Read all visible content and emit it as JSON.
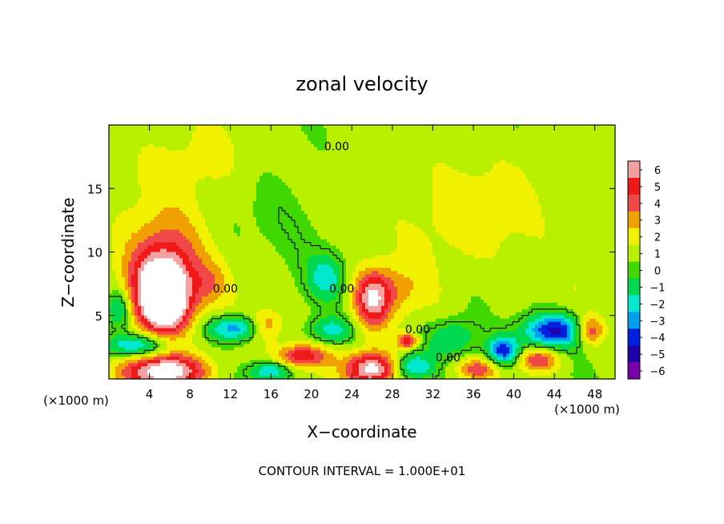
{
  "chart_data": {
    "type": "heatmap",
    "title": "zonal velocity",
    "xlabel": "X−coordinate",
    "ylabel": "Z−coordinate",
    "x_unit": "(×1000 m)",
    "x_unit_right": "(×1000 m)",
    "xlim": [
      0,
      50
    ],
    "ylim": [
      0,
      20
    ],
    "x_ticks": [
      4,
      8,
      12,
      16,
      20,
      24,
      28,
      32,
      36,
      40,
      44,
      48
    ],
    "x_tick_labels": [
      "4",
      "8",
      "12",
      "16",
      "20",
      "24",
      "28",
      "32",
      "36",
      "40",
      "44",
      "48"
    ],
    "y_ticks": [
      5,
      10,
      15
    ],
    "y_tick_labels": [
      "5",
      "10",
      "15"
    ],
    "footer": "CONTOUR INTERVAL = 1.000E+01",
    "contour_labels": [
      {
        "text": "0.00",
        "x": 22.5,
        "y": 18.0
      },
      {
        "text": "0.00",
        "x": 11.5,
        "y": 6.8
      },
      {
        "text": "0.00",
        "x": 23.0,
        "y": 6.8
      },
      {
        "text": "0.00",
        "x": 30.5,
        "y": 3.6
      },
      {
        "text": "0.00",
        "x": 33.5,
        "y": 1.4
      }
    ],
    "colorbar": {
      "levels": [
        6,
        5,
        4,
        3,
        2,
        1,
        0,
        -1,
        -2,
        -3,
        -4,
        -5,
        -6
      ],
      "labels": [
        "6",
        "5",
        "4",
        "3",
        "2",
        "1",
        "0",
        "−1",
        "−2",
        "−3",
        "−4",
        "−5",
        "−6"
      ],
      "colors": [
        "#f2a0a0",
        "#f01818",
        "#f04848",
        "#f0a000",
        "#f0f000",
        "#b8f000",
        "#40d800",
        "#00d850",
        "#00e8d0",
        "#00a0f0",
        "#0020e0",
        "#2000a8",
        "#7800a8"
      ]
    },
    "features": [
      {
        "x": 5.5,
        "z": 6.0,
        "v": 6.5,
        "rx": 2.6,
        "rz": 2.6
      },
      {
        "x": 5.0,
        "z": 7.5,
        "v": 4.5,
        "rx": 3.2,
        "rz": 3.2
      },
      {
        "x": 6.0,
        "z": 10.0,
        "v": 2.2,
        "rx": 4.0,
        "rz": 3.5
      },
      {
        "x": 5.5,
        "z": 0.6,
        "v": 6.5,
        "rx": 4.0,
        "rz": 1.4
      },
      {
        "x": 26.0,
        "z": 6.2,
        "v": 4.8,
        "rx": 1.8,
        "rz": 2.2
      },
      {
        "x": 26.0,
        "z": 0.8,
        "v": 6.5,
        "rx": 2.5,
        "rz": 1.3
      },
      {
        "x": 19.0,
        "z": 1.8,
        "v": 4.5,
        "rx": 2.5,
        "rz": 0.9
      },
      {
        "x": 15.5,
        "z": 4.2,
        "v": 3.0,
        "rx": 1.6,
        "rz": 1.2
      },
      {
        "x": 12.5,
        "z": 4.0,
        "v": -4.0,
        "rx": 2.8,
        "rz": 1.0
      },
      {
        "x": 3.0,
        "z": 2.6,
        "v": -4.0,
        "rx": 3.5,
        "rz": 1.0
      },
      {
        "x": 22.0,
        "z": 3.8,
        "v": -2.8,
        "rx": 2.2,
        "rz": 1.1
      },
      {
        "x": 21.5,
        "z": 8.0,
        "v": -2.5,
        "rx": 1.8,
        "rz": 1.8
      },
      {
        "x": 44.0,
        "z": 3.8,
        "v": -5.5,
        "rx": 3.2,
        "rz": 1.3
      },
      {
        "x": 39.0,
        "z": 2.2,
        "v": -5.0,
        "rx": 1.6,
        "rz": 1.1
      },
      {
        "x": 47.5,
        "z": 3.8,
        "v": 4.0,
        "rx": 1.4,
        "rz": 1.1
      },
      {
        "x": 42.5,
        "z": 1.5,
        "v": 3.5,
        "rx": 2.0,
        "rz": 0.9
      },
      {
        "x": 34.0,
        "z": 3.2,
        "v": -2.5,
        "rx": 2.5,
        "rz": 1.5
      },
      {
        "x": 16.0,
        "z": 0.6,
        "v": -3.5,
        "rx": 2.0,
        "rz": 0.8
      },
      {
        "x": 30.0,
        "z": 1.0,
        "v": -3.5,
        "rx": 2.0,
        "rz": 1.0
      },
      {
        "x": 36.5,
        "z": 0.8,
        "v": 3.0,
        "rx": 2.0,
        "rz": 0.8
      },
      {
        "x": 1.0,
        "z": 5.5,
        "v": -3.0,
        "rx": 1.2,
        "rz": 1.5
      },
      {
        "x": 18.0,
        "z": 12.0,
        "v": -0.8,
        "rx": 5.0,
        "rz": 4.5
      },
      {
        "x": 35.0,
        "z": 13.0,
        "v": 1.2,
        "rx": 8.0,
        "rz": 4.0
      },
      {
        "x": 8.0,
        "z": 17.0,
        "v": 1.0,
        "rx": 6.0,
        "rz": 3.0
      },
      {
        "x": 28.0,
        "z": 7.0,
        "v": 1.8,
        "rx": 3.0,
        "rz": 2.0
      },
      {
        "x": 29.5,
        "z": 3.0,
        "v": 4.5,
        "rx": 1.0,
        "rz": 0.6
      },
      {
        "x": 10.0,
        "z": 7.5,
        "v": 1.6,
        "rx": 1.8,
        "rz": 1.6
      }
    ]
  }
}
